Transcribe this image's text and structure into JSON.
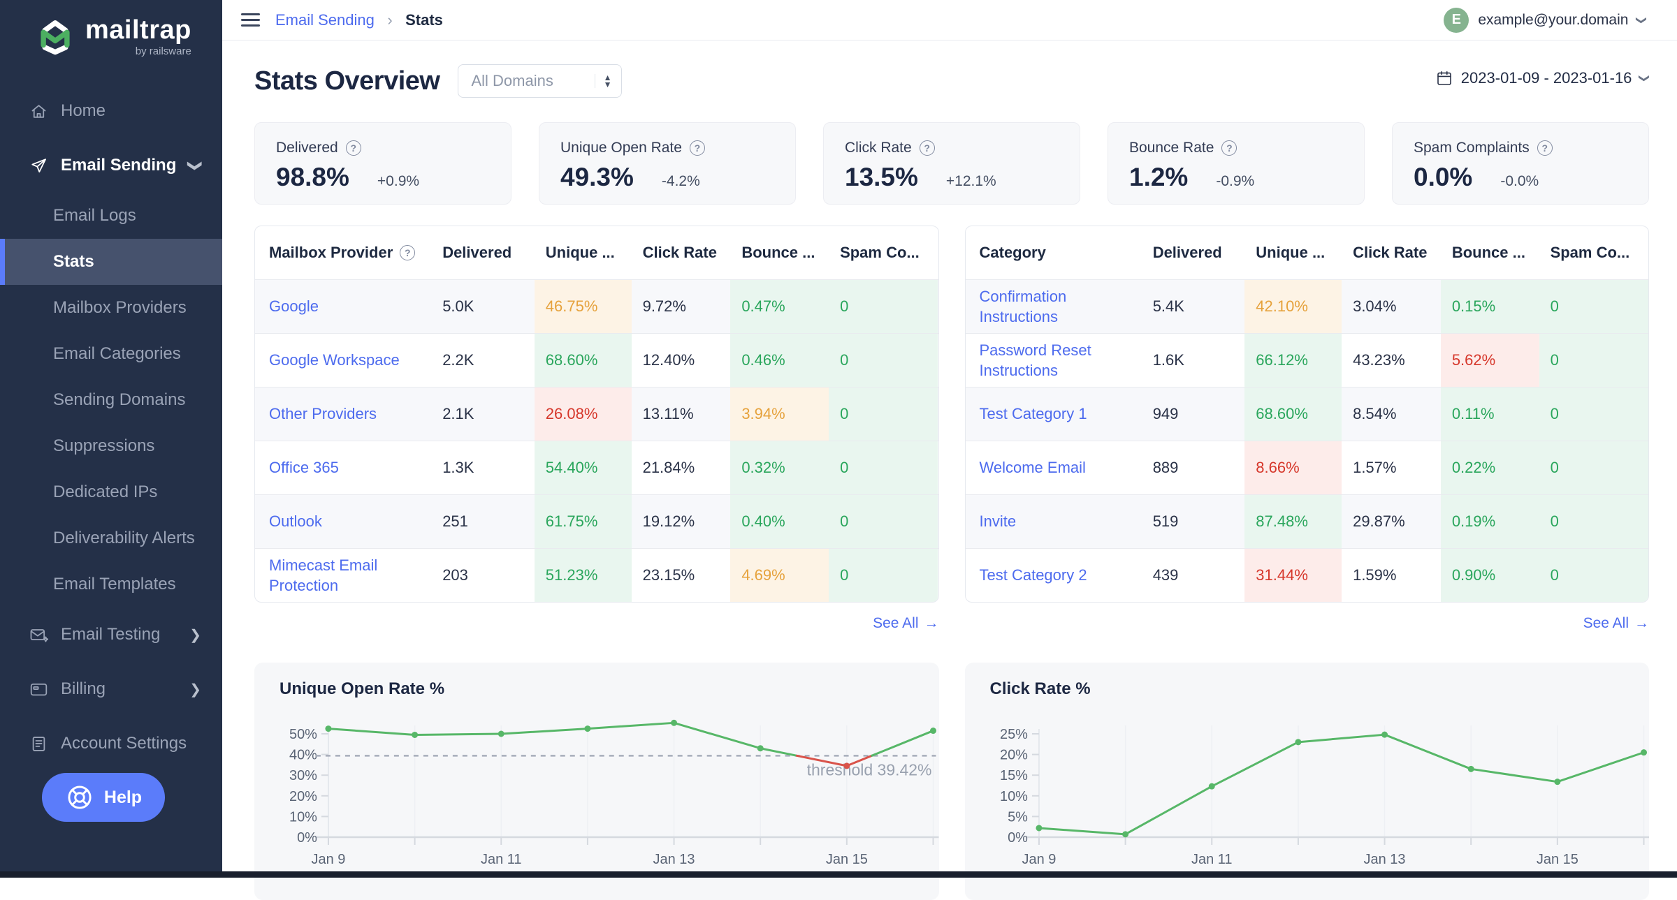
{
  "sidebar": {
    "brand": "mailtrap",
    "brand_tagline": "by railsware",
    "nav": [
      {
        "label": "Home",
        "icon": "home-icon",
        "type": "top"
      },
      {
        "label": "Email Sending",
        "icon": "send-icon",
        "type": "top",
        "bold": true,
        "chevron": "down"
      },
      {
        "label": "Email Logs",
        "type": "sub"
      },
      {
        "label": "Stats",
        "type": "sub",
        "active": true
      },
      {
        "label": "Mailbox Providers",
        "type": "sub"
      },
      {
        "label": "Email Categories",
        "type": "sub"
      },
      {
        "label": "Sending Domains",
        "type": "sub"
      },
      {
        "label": "Suppressions",
        "type": "sub"
      },
      {
        "label": "Dedicated IPs",
        "type": "sub"
      },
      {
        "label": "Deliverability Alerts",
        "type": "sub"
      },
      {
        "label": "Email Templates",
        "type": "sub"
      },
      {
        "label": "Email Testing",
        "icon": "mail-icon",
        "type": "top",
        "chevron": "right"
      },
      {
        "label": "Billing",
        "icon": "billing-icon",
        "type": "top",
        "chevron": "right"
      },
      {
        "label": "Account Settings",
        "icon": "account-icon",
        "type": "top"
      }
    ],
    "help_label": "Help"
  },
  "header": {
    "breadcrumb_section": "Email Sending",
    "breadcrumb_separator": "›",
    "breadcrumb_current": "Stats",
    "avatar_initial": "E",
    "user_email": "example@your.domain"
  },
  "toolbar": {
    "page_title": "Stats Overview",
    "domain_filter": "All Domains",
    "date_range": "2023-01-09 - 2023-01-16"
  },
  "kpis": [
    {
      "label": "Delivered",
      "value": "98.8%",
      "delta": "+0.9%"
    },
    {
      "label": "Unique Open Rate",
      "value": "49.3%",
      "delta": "-4.2%"
    },
    {
      "label": "Click Rate",
      "value": "13.5%",
      "delta": "+12.1%"
    },
    {
      "label": "Bounce Rate",
      "value": "1.2%",
      "delta": "-0.9%"
    },
    {
      "label": "Spam Complaints",
      "value": "0.0%",
      "delta": "-0.0%"
    }
  ],
  "provider_table": {
    "columns": [
      "Mailbox Provider",
      "Delivered",
      "Unique ...",
      "Click Rate",
      "Bounce ...",
      "Spam Co..."
    ],
    "header_has_info": true,
    "see_all_label": "See All",
    "see_all_arrow": "→",
    "rows": [
      {
        "name": "Google",
        "cells": [
          [
            "5.0K",
            "plain"
          ],
          [
            "46.75%",
            "warn"
          ],
          [
            "9.72%",
            "plain"
          ],
          [
            "0.47%",
            "good"
          ],
          [
            "0",
            "good"
          ]
        ]
      },
      {
        "name": "Google Workspace",
        "cells": [
          [
            "2.2K",
            "plain"
          ],
          [
            "68.60%",
            "good"
          ],
          [
            "12.40%",
            "plain"
          ],
          [
            "0.46%",
            "good"
          ],
          [
            "0",
            "good"
          ]
        ]
      },
      {
        "name": "Other Providers",
        "cells": [
          [
            "2.1K",
            "plain"
          ],
          [
            "26.08%",
            "bad"
          ],
          [
            "13.11%",
            "plain"
          ],
          [
            "3.94%",
            "warn"
          ],
          [
            "0",
            "good"
          ]
        ]
      },
      {
        "name": "Office 365",
        "cells": [
          [
            "1.3K",
            "plain"
          ],
          [
            "54.40%",
            "good"
          ],
          [
            "21.84%",
            "plain"
          ],
          [
            "0.32%",
            "good"
          ],
          [
            "0",
            "good"
          ]
        ]
      },
      {
        "name": "Outlook",
        "cells": [
          [
            "251",
            "plain"
          ],
          [
            "61.75%",
            "good"
          ],
          [
            "19.12%",
            "plain"
          ],
          [
            "0.40%",
            "good"
          ],
          [
            "0",
            "good"
          ]
        ]
      },
      {
        "name": "Mimecast Email Protection",
        "cells": [
          [
            "203",
            "plain"
          ],
          [
            "51.23%",
            "good"
          ],
          [
            "23.15%",
            "plain"
          ],
          [
            "4.69%",
            "warn"
          ],
          [
            "0",
            "good"
          ]
        ]
      }
    ]
  },
  "category_table": {
    "columns": [
      "Category",
      "Delivered",
      "Unique ...",
      "Click Rate",
      "Bounce ...",
      "Spam Co..."
    ],
    "header_has_info": false,
    "see_all_label": "See All",
    "see_all_arrow": "→",
    "rows": [
      {
        "name": "Confirmation Instructions",
        "cells": [
          [
            "5.4K",
            "plain"
          ],
          [
            "42.10%",
            "warn"
          ],
          [
            "3.04%",
            "plain"
          ],
          [
            "0.15%",
            "good"
          ],
          [
            "0",
            "good"
          ]
        ]
      },
      {
        "name": "Password Reset Instructions",
        "cells": [
          [
            "1.6K",
            "plain"
          ],
          [
            "66.12%",
            "good"
          ],
          [
            "43.23%",
            "plain"
          ],
          [
            "5.62%",
            "bad"
          ],
          [
            "0",
            "good"
          ]
        ]
      },
      {
        "name": "Test Category 1",
        "cells": [
          [
            "949",
            "plain"
          ],
          [
            "68.60%",
            "good"
          ],
          [
            "8.54%",
            "plain"
          ],
          [
            "0.11%",
            "good"
          ],
          [
            "0",
            "good"
          ]
        ]
      },
      {
        "name": "Welcome Email",
        "cells": [
          [
            "889",
            "plain"
          ],
          [
            "8.66%",
            "bad"
          ],
          [
            "1.57%",
            "plain"
          ],
          [
            "0.22%",
            "good"
          ],
          [
            "0",
            "good"
          ]
        ]
      },
      {
        "name": "Invite",
        "cells": [
          [
            "519",
            "plain"
          ],
          [
            "87.48%",
            "good"
          ],
          [
            "29.87%",
            "plain"
          ],
          [
            "0.19%",
            "good"
          ],
          [
            "0",
            "good"
          ]
        ]
      },
      {
        "name": "Test Category 2",
        "cells": [
          [
            "439",
            "plain"
          ],
          [
            "31.44%",
            "bad"
          ],
          [
            "1.59%",
            "plain"
          ],
          [
            "0.90%",
            "good"
          ],
          [
            "0",
            "good"
          ]
        ]
      }
    ]
  },
  "chart_data": [
    {
      "type": "line",
      "title": "Unique Open Rate %",
      "x": [
        "Jan 9",
        "Jan 10",
        "Jan 11",
        "Jan 12",
        "Jan 13",
        "Jan 14",
        "Jan 15",
        "Jan 16"
      ],
      "x_tick_labels": [
        "Jan 9",
        "Jan 11",
        "Jan 13",
        "Jan 15"
      ],
      "values": [
        52.5,
        49.5,
        50.0,
        52.5,
        55.3,
        43.0,
        34.5,
        51.5
      ],
      "y_ticks": [
        0,
        10,
        20,
        30,
        40,
        50
      ],
      "ylim": [
        0,
        58
      ],
      "threshold": 39.42,
      "threshold_label": "threshold 39.42%",
      "line_color": "#57b768",
      "below_threshold_color": "#d9534a",
      "grid": true,
      "legend": false,
      "xlabel": "",
      "ylabel": ""
    },
    {
      "type": "line",
      "title": "Click Rate %",
      "x": [
        "Jan 9",
        "Jan 10",
        "Jan 11",
        "Jan 12",
        "Jan 13",
        "Jan 14",
        "Jan 15",
        "Jan 16"
      ],
      "x_tick_labels": [
        "Jan 9",
        "Jan 11",
        "Jan 13",
        "Jan 15"
      ],
      "values": [
        2.2,
        0.7,
        12.3,
        23.0,
        24.8,
        16.5,
        13.4,
        20.5
      ],
      "y_ticks": [
        0,
        5,
        10,
        15,
        20,
        25
      ],
      "ylim": [
        0,
        29
      ],
      "line_color": "#57b768",
      "grid": true,
      "legend": false,
      "xlabel": "",
      "ylabel": ""
    }
  ]
}
